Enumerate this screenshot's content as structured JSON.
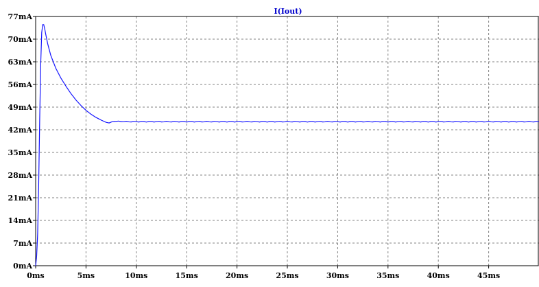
{
  "chart_data": {
    "type": "line",
    "title": "I(Iout)",
    "xlabel": "",
    "ylabel": "",
    "x_unit": "ms",
    "y_unit": "mA",
    "xlim": [
      0,
      50
    ],
    "ylim": [
      0,
      77
    ],
    "x_ticks": [
      0,
      5,
      10,
      15,
      20,
      25,
      30,
      35,
      40,
      45
    ],
    "x_tick_labels": [
      "0ms",
      "5ms",
      "10ms",
      "15ms",
      "20ms",
      "25ms",
      "30ms",
      "35ms",
      "40ms",
      "45ms"
    ],
    "y_ticks": [
      0,
      7,
      14,
      21,
      28,
      35,
      42,
      49,
      56,
      63,
      70,
      77
    ],
    "y_tick_labels": [
      "0mA",
      "7mA",
      "14mA",
      "21mA",
      "28mA",
      "35mA",
      "42mA",
      "49mA",
      "56mA",
      "63mA",
      "70mA",
      "77mA"
    ],
    "grid": true,
    "series": [
      {
        "name": "I(Iout)",
        "color": "#1414ff",
        "x": [
          0,
          0.1,
          0.2,
          0.3,
          0.4,
          0.5,
          0.6,
          0.7,
          0.8,
          0.9,
          1.0,
          1.2,
          1.5,
          2.0,
          2.5,
          3.0,
          3.5,
          4.0,
          4.5,
          5.0,
          5.5,
          6.0,
          6.5,
          7.0,
          7.3,
          7.6,
          8.0,
          9.0,
          10,
          15,
          20,
          25,
          30,
          35,
          40,
          45,
          50
        ],
        "y": [
          0,
          3,
          10,
          25,
          45,
          62,
          72,
          74.5,
          74.5,
          73.2,
          71.5,
          68.5,
          65,
          61,
          58,
          55.5,
          53.2,
          51.2,
          49.5,
          48,
          46.8,
          45.8,
          45,
          44.3,
          44.1,
          44.5,
          44.6,
          44.5,
          44.5,
          44.5,
          44.5,
          44.5,
          44.5,
          44.5,
          44.5,
          44.5,
          44.5
        ]
      }
    ]
  }
}
